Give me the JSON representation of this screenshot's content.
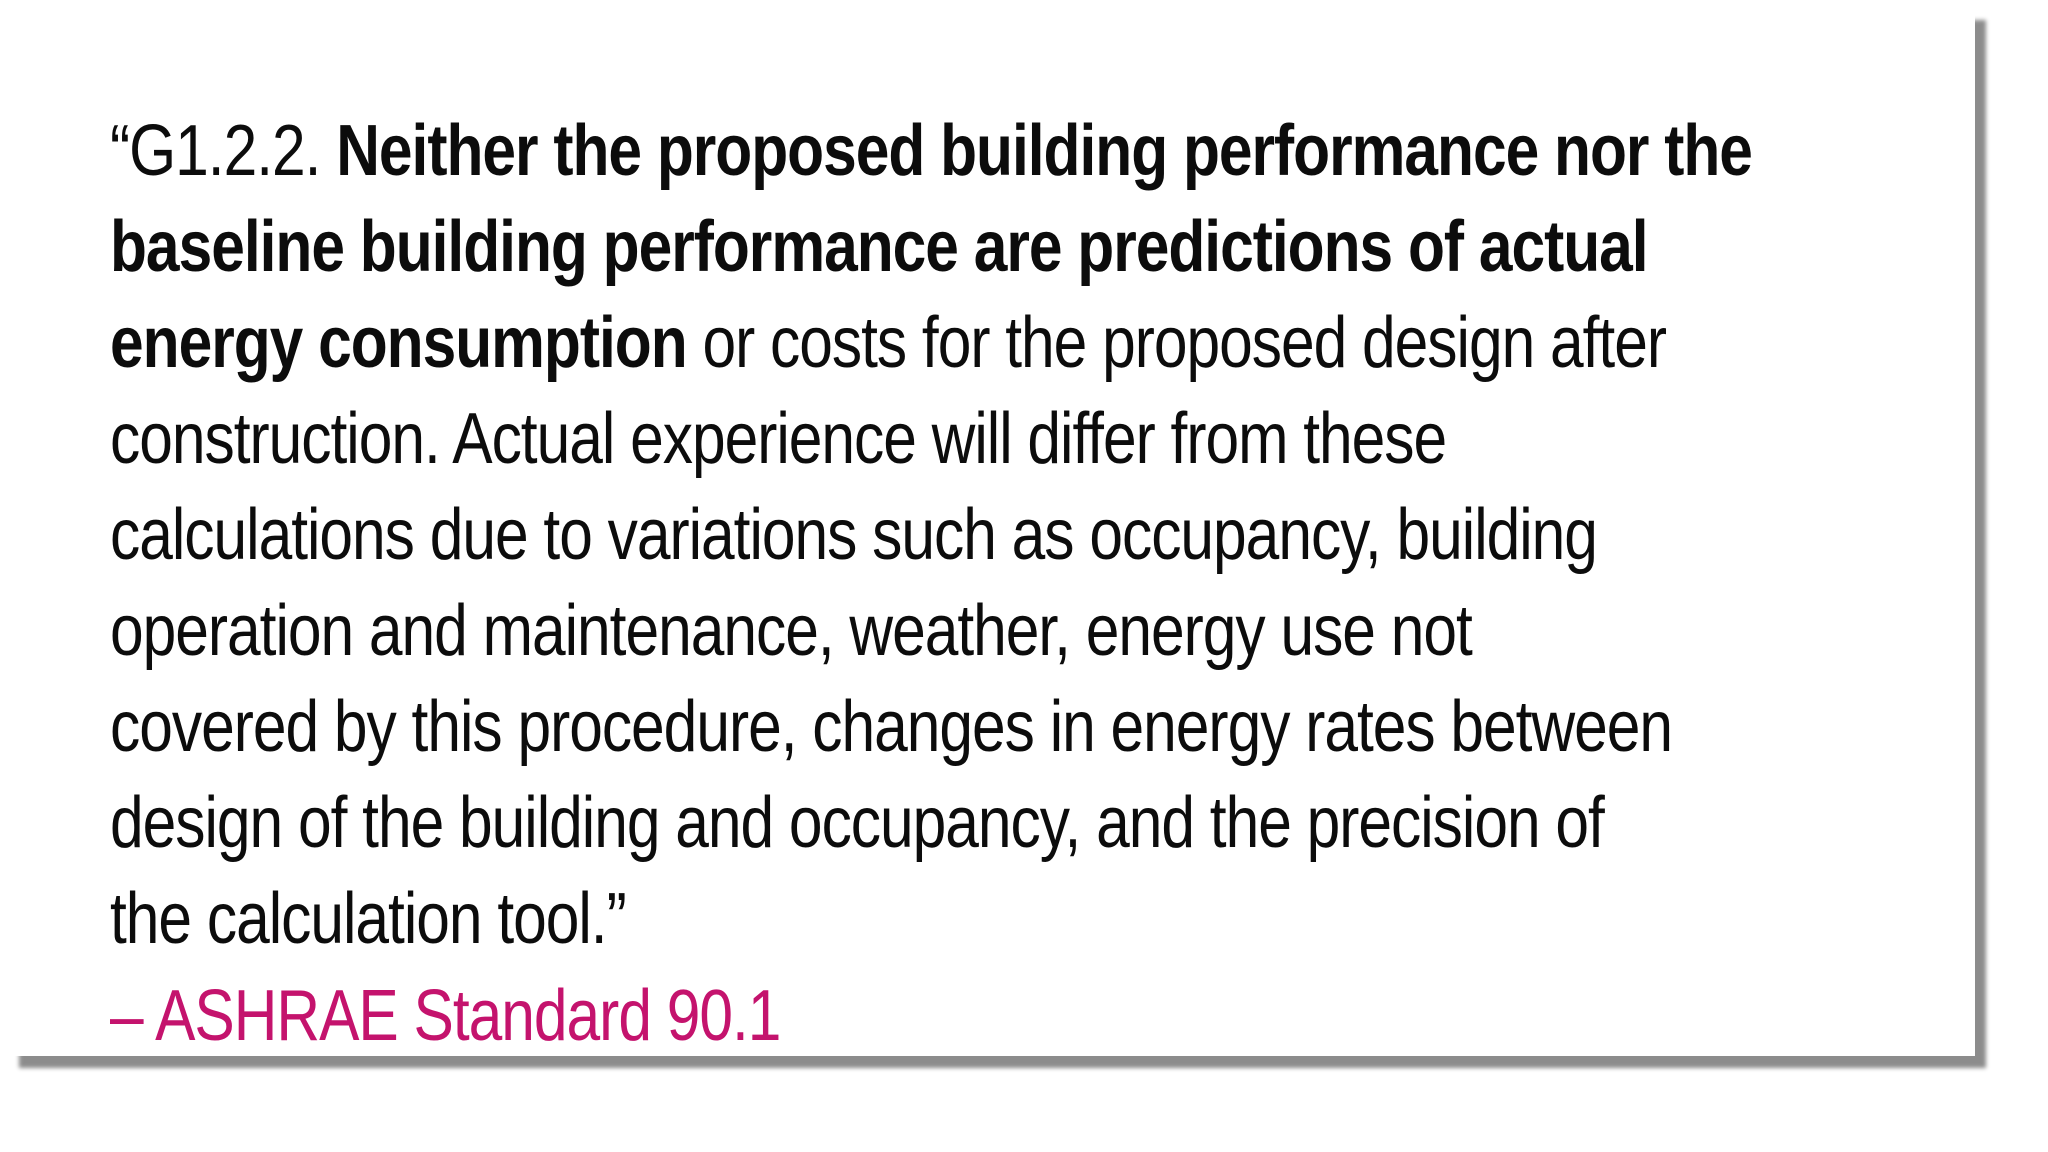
{
  "quote": {
    "line1_plain": "“G1.2.2. ",
    "line1_bold": "Neither the proposed building performance nor the",
    "line2_bold": "baseline building performance are predictions of actual",
    "line3_bold": "energy consumption",
    "line3_plain": " or costs for the proposed design after",
    "line4": "construction. Actual experience will differ from these",
    "line5": "calculations due to variations such as occupancy, building",
    "line6": "operation and maintenance, weather, energy use not",
    "line7": "covered by this procedure, changes in energy rates between",
    "line8": "design of the building and occupancy, and the precision of",
    "line9": "the calculation tool.”"
  },
  "attribution": {
    "text": "– ASHRAE Standard 90.1",
    "color": "#c4136d"
  },
  "colors": {
    "text": "#0c0c0c",
    "background": "#ffffff",
    "shadow": "#8a8a8a"
  }
}
